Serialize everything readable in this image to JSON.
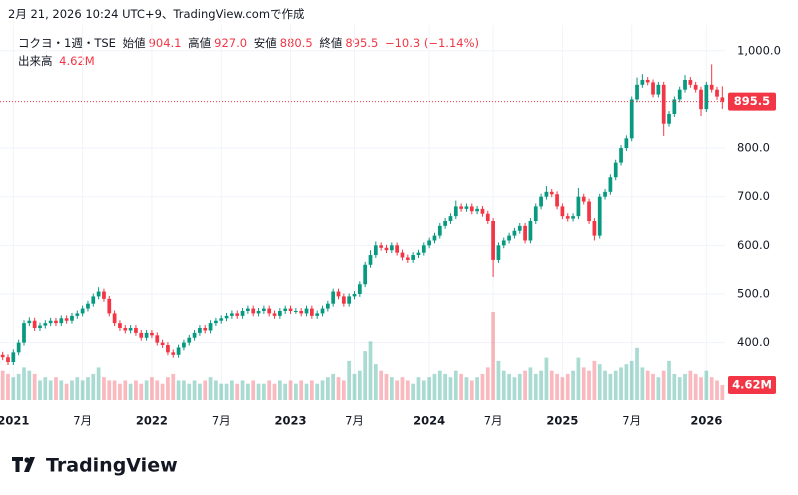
{
  "header": {
    "caption": "2月 21, 2026 10:24 UTC+9、TradingView.comで作成"
  },
  "legend": {
    "symbol": "コクヨ・1週・TSE",
    "open_label": "始値",
    "open": "904.1",
    "high_label": "高値",
    "high": "927.0",
    "low_label": "安値",
    "low": "880.5",
    "close_label": "終値",
    "close": "895.5",
    "change": "−10.3 (−1.14%)"
  },
  "brand": "TradingView",
  "chart_data": {
    "type": "candlestick",
    "up_color": "#089981",
    "down_color": "#f23645",
    "grid": true,
    "ylim": [
      282,
      1053
    ],
    "yticks": [
      {
        "value": 400,
        "label": "400.0"
      },
      {
        "value": 500,
        "label": "500.0"
      },
      {
        "value": 600,
        "label": "600.0"
      },
      {
        "value": 700,
        "label": "700.0"
      },
      {
        "value": 800,
        "label": "800.0"
      },
      {
        "value": 1000,
        "label": "1,000.0"
      }
    ],
    "categories": [
      null,
      null,
      "2021",
      null,
      null,
      null,
      null,
      null,
      null,
      null,
      null,
      null,
      null,
      null,
      null,
      "7月",
      null,
      null,
      null,
      null,
      null,
      null,
      null,
      null,
      null,
      null,
      null,
      null,
      "2022",
      null,
      null,
      null,
      null,
      null,
      null,
      null,
      null,
      null,
      null,
      null,
      null,
      "7月",
      null,
      null,
      null,
      null,
      null,
      null,
      null,
      null,
      null,
      null,
      null,
      null,
      "2023",
      null,
      null,
      null,
      null,
      null,
      null,
      null,
      null,
      null,
      null,
      null,
      "7月",
      null,
      null,
      null,
      null,
      null,
      null,
      null,
      null,
      null,
      null,
      null,
      null,
      null,
      "2024",
      null,
      null,
      null,
      null,
      null,
      null,
      null,
      null,
      null,
      null,
      null,
      "7月",
      null,
      null,
      null,
      null,
      null,
      null,
      null,
      null,
      null,
      null,
      null,
      null,
      "2025",
      null,
      null,
      null,
      null,
      null,
      null,
      null,
      null,
      null,
      null,
      null,
      null,
      "7月",
      null,
      null,
      null,
      null,
      null,
      null,
      null,
      null,
      null,
      null,
      null,
      null,
      null,
      "2026",
      null,
      null,
      null
    ],
    "open": [
      375,
      370,
      360,
      380,
      400,
      440,
      445,
      430,
      435,
      440,
      445,
      440,
      450,
      445,
      455,
      460,
      470,
      480,
      495,
      505,
      490,
      460,
      440,
      430,
      425,
      430,
      420,
      410,
      420,
      415,
      400,
      395,
      380,
      375,
      390,
      400,
      410,
      420,
      430,
      425,
      440,
      445,
      450,
      455,
      460,
      455,
      465,
      470,
      460,
      465,
      470,
      460,
      455,
      465,
      470,
      465,
      465,
      460,
      470,
      455,
      460,
      470,
      480,
      505,
      495,
      480,
      495,
      500,
      520,
      560,
      580,
      600,
      595,
      590,
      600,
      585,
      575,
      570,
      580,
      585,
      600,
      610,
      620,
      640,
      650,
      660,
      680,
      675,
      680,
      670,
      675,
      665,
      650,
      570,
      600,
      610,
      620,
      630,
      640,
      610,
      650,
      680,
      700,
      710,
      705,
      680,
      660,
      655,
      660,
      700,
      690,
      650,
      620,
      700,
      710,
      740,
      770,
      800,
      820,
      900,
      930,
      940,
      935,
      910,
      930,
      850,
      870,
      900,
      920,
      940,
      930,
      920,
      880,
      930,
      920,
      904.1
    ],
    "high": [
      381,
      376,
      386,
      406,
      446,
      452,
      451,
      441,
      446,
      451,
      451,
      456,
      456,
      461,
      466,
      476,
      486,
      501,
      514,
      511,
      496,
      466,
      446,
      436,
      436,
      436,
      426,
      426,
      426,
      421,
      406,
      401,
      386,
      396,
      406,
      416,
      426,
      436,
      436,
      446,
      451,
      456,
      461,
      466,
      466,
      471,
      476,
      476,
      471,
      476,
      476,
      466,
      471,
      476,
      476,
      471,
      471,
      476,
      476,
      466,
      476,
      486,
      511,
      511,
      501,
      501,
      506,
      526,
      566,
      590,
      608,
      606,
      601,
      606,
      606,
      591,
      581,
      586,
      591,
      606,
      616,
      626,
      646,
      656,
      666,
      692,
      686,
      686,
      686,
      681,
      681,
      671,
      656,
      606,
      616,
      626,
      636,
      646,
      646,
      656,
      686,
      706,
      722,
      716,
      711,
      686,
      666,
      666,
      718,
      706,
      696,
      656,
      706,
      716,
      746,
      776,
      806,
      826,
      906,
      945,
      952,
      946,
      941,
      936,
      936,
      876,
      906,
      926,
      950,
      946,
      936,
      926,
      936,
      972,
      926,
      927
    ],
    "low": [
      364,
      354,
      354,
      374,
      394,
      434,
      424,
      424,
      429,
      434,
      434,
      434,
      439,
      439,
      449,
      454,
      464,
      474,
      489,
      484,
      454,
      434,
      424,
      419,
      419,
      414,
      404,
      404,
      409,
      394,
      389,
      374,
      369,
      369,
      384,
      394,
      404,
      414,
      419,
      419,
      434,
      439,
      444,
      449,
      449,
      449,
      459,
      454,
      454,
      459,
      454,
      449,
      449,
      459,
      459,
      459,
      454,
      454,
      449,
      449,
      454,
      464,
      474,
      489,
      474,
      474,
      489,
      494,
      514,
      554,
      574,
      589,
      584,
      584,
      579,
      569,
      564,
      564,
      574,
      579,
      594,
      604,
      614,
      634,
      644,
      654,
      669,
      669,
      664,
      664,
      659,
      644,
      535,
      564,
      594,
      604,
      614,
      624,
      604,
      604,
      644,
      674,
      694,
      699,
      674,
      654,
      649,
      649,
      654,
      684,
      644,
      610,
      614,
      694,
      704,
      734,
      764,
      794,
      814,
      894,
      924,
      929,
      904,
      904,
      825,
      844,
      864,
      894,
      914,
      924,
      914,
      866,
      874,
      914,
      899,
      880.5
    ],
    "close": [
      370,
      360,
      380,
      400,
      440,
      445,
      430,
      435,
      440,
      445,
      440,
      450,
      445,
      455,
      460,
      470,
      480,
      495,
      505,
      490,
      460,
      440,
      430,
      425,
      430,
      420,
      410,
      420,
      415,
      400,
      395,
      380,
      375,
      390,
      400,
      410,
      420,
      430,
      425,
      440,
      445,
      450,
      455,
      460,
      455,
      465,
      470,
      460,
      465,
      470,
      460,
      455,
      465,
      470,
      465,
      465,
      460,
      470,
      455,
      460,
      470,
      480,
      505,
      495,
      480,
      495,
      500,
      520,
      560,
      580,
      600,
      595,
      590,
      600,
      585,
      575,
      570,
      580,
      585,
      600,
      610,
      620,
      640,
      650,
      660,
      680,
      675,
      680,
      670,
      675,
      665,
      650,
      570,
      600,
      610,
      620,
      630,
      640,
      610,
      650,
      680,
      700,
      710,
      705,
      680,
      660,
      655,
      660,
      700,
      690,
      650,
      620,
      700,
      710,
      740,
      770,
      800,
      820,
      900,
      930,
      940,
      935,
      910,
      930,
      850,
      870,
      900,
      920,
      940,
      930,
      920,
      880,
      930,
      920,
      905.8,
      895.5
    ],
    "volume": {
      "name": "出来高",
      "last_label": "4.62M",
      "values": [
        9,
        8,
        7,
        8,
        10,
        9,
        8,
        6,
        7,
        6,
        7,
        6,
        5,
        6,
        7,
        6,
        7,
        8,
        10,
        7,
        6,
        6,
        5,
        6,
        5,
        6,
        5,
        6,
        7,
        6,
        5,
        7,
        8,
        6,
        6,
        5,
        6,
        5,
        6,
        7,
        6,
        5,
        5,
        6,
        5,
        6,
        5,
        6,
        5,
        5,
        6,
        5,
        6,
        5,
        6,
        5,
        6,
        5,
        6,
        5,
        6,
        7,
        8,
        7,
        6,
        12,
        8,
        9,
        15,
        18,
        11,
        9,
        8,
        7,
        6,
        7,
        6,
        5,
        7,
        6,
        7,
        8,
        9,
        8,
        7,
        9,
        8,
        7,
        6,
        7,
        8,
        10,
        27,
        12,
        9,
        8,
        7,
        8,
        9,
        10,
        8,
        9,
        13,
        9,
        8,
        7,
        8,
        9,
        13,
        10,
        9,
        12,
        11,
        9,
        8,
        9,
        10,
        11,
        12,
        16,
        10,
        9,
        8,
        7,
        9,
        12,
        8,
        7,
        8,
        9,
        8,
        7,
        9,
        7,
        6,
        4.62
      ]
    }
  }
}
